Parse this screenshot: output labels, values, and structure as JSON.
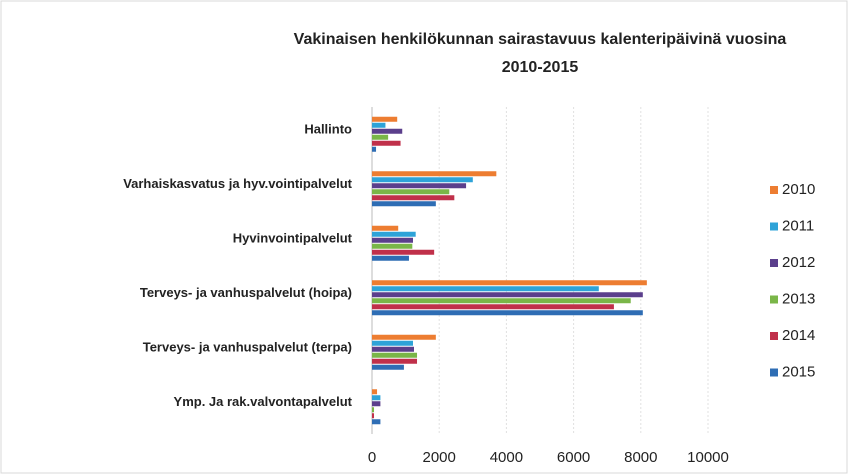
{
  "chart_data": {
    "type": "hbar",
    "title": [
      "Vakinaisen henkilökunnan sairastavuus kalenteripäivinä vuosina",
      "2010-2015"
    ],
    "categories": [
      "Hallinto",
      "Varhaiskasvatus ja hyv.vointipalvelut",
      "Hyvinvointipalvelut",
      "Terveys- ja vanhuspalvelut (hoipa)",
      "Terveys- ja vanhuspalvelut (terpa)",
      "Ymp. Ja rak.valvontapalvelut"
    ],
    "series": [
      {
        "name": "2010",
        "color": "#ed7d31",
        "values": [
          750,
          3700,
          780,
          8180,
          1900,
          150
        ]
      },
      {
        "name": "2011",
        "color": "#2ea3d8",
        "values": [
          400,
          3000,
          1300,
          6750,
          1220,
          250
        ]
      },
      {
        "name": "2012",
        "color": "#5b3f8c",
        "values": [
          900,
          2800,
          1220,
          8060,
          1250,
          250
        ]
      },
      {
        "name": "2013",
        "color": "#7ab648",
        "values": [
          480,
          2300,
          1200,
          7700,
          1340,
          60
        ]
      },
      {
        "name": "2014",
        "color": "#c0304a",
        "values": [
          850,
          2450,
          1850,
          7200,
          1340,
          60
        ]
      },
      {
        "name": "2015",
        "color": "#2e6db4",
        "values": [
          120,
          1900,
          1100,
          8060,
          950,
          250
        ]
      }
    ],
    "xlim": [
      0,
      10000
    ],
    "xticks": [
      0,
      2000,
      4000,
      6000,
      8000,
      10000
    ],
    "grid": true,
    "legend": "right"
  }
}
